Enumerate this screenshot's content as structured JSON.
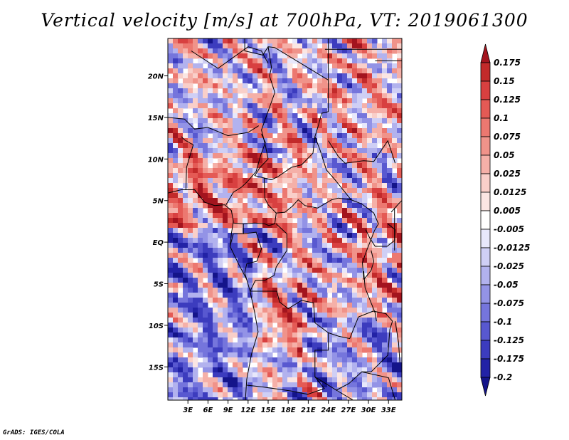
{
  "title": "Vertical velocity [m/s] at 700hPa, VT: 2019061300",
  "footer": "GrADS: IGES/COLA",
  "chart_data": {
    "type": "heatmap",
    "variable": "Vertical velocity",
    "units": "m/s",
    "level": "700hPa",
    "valid_time": "2019061300",
    "x_range": [
      0,
      35
    ],
    "y_range": [
      -19,
      24.5
    ],
    "x_ticks": [
      3,
      6,
      9,
      12,
      15,
      18,
      21,
      24,
      27,
      30,
      33
    ],
    "x_tick_labels": [
      "3E",
      "6E",
      "9E",
      "12E",
      "15E",
      "18E",
      "21E",
      "24E",
      "27E",
      "30E",
      "33E"
    ],
    "y_ticks": [
      20,
      15,
      10,
      5,
      0,
      -5,
      -10,
      -15
    ],
    "y_tick_labels": [
      "20N",
      "15N",
      "10N",
      "5N",
      "EQ",
      "5S",
      "10S",
      "15S"
    ],
    "colorbar": {
      "levels": [
        "0.175",
        "0.15",
        "0.125",
        "0.1",
        "0.075",
        "0.05",
        "0.025",
        "0.0125",
        "0.005",
        "-0.005",
        "-0.0125",
        "-0.025",
        "-0.05",
        "-0.075",
        "-0.1",
        "-0.125",
        "-0.175",
        "-0.2"
      ],
      "colors": [
        "#a3141e",
        "#c22a2a",
        "#d84040",
        "#e45a55",
        "#ec7870",
        "#f0938a",
        "#f5b0a8",
        "#f9cfc9",
        "#fbe6e3",
        "#ffffff",
        "#e8e8fb",
        "#cfcff5",
        "#b2b2ee",
        "#9393e6",
        "#7575dc",
        "#5858d0",
        "#3c3cbe",
        "#2222a6",
        "#14148a"
      ]
    }
  }
}
